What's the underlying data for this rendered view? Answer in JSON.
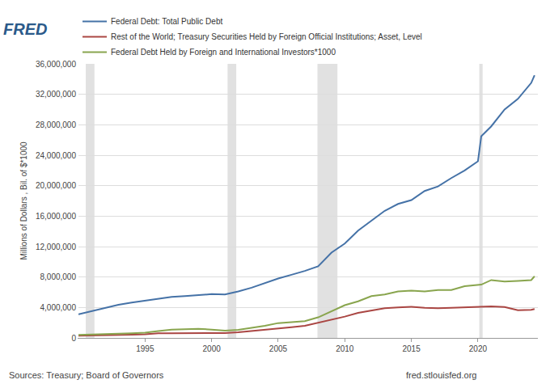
{
  "chart_data": {
    "type": "line",
    "logo": "FRED",
    "y_label": "Millions of Dollars , Bil. of $*1000",
    "sources": "Sources: Treasury; Board of Governors",
    "credit": "fred.stlouisfed.org",
    "legend": "top",
    "grid": true,
    "x": [
      1990,
      1991,
      1992,
      1993,
      1994,
      1995,
      1996,
      1997,
      1998,
      1999,
      2000,
      2001,
      2002,
      2003,
      2004,
      2005,
      2006,
      2007,
      2008,
      2009,
      2010,
      2011,
      2012,
      2013,
      2014,
      2015,
      2016,
      2017,
      2018,
      2019,
      2020,
      2020.25,
      2021,
      2022,
      2023,
      2024,
      2024.25
    ],
    "series": [
      {
        "name": "Federal Debt: Total Public Debt",
        "color": "#4572a7",
        "values": [
          3100000,
          3500000,
          3950000,
          4350000,
          4650000,
          4900000,
          5150000,
          5400000,
          5500000,
          5650000,
          5750000,
          5700000,
          6100000,
          6600000,
          7200000,
          7800000,
          8300000,
          8800000,
          9400000,
          11200000,
          12400000,
          14100000,
          15400000,
          16700000,
          17600000,
          18100000,
          19300000,
          19900000,
          21000000,
          22000000,
          23200000,
          26500000,
          27800000,
          30000000,
          31400000,
          33500000,
          34500000
        ]
      },
      {
        "name": "Rest of the World; Treasury Securities Held by Foreign Official Institutions; Asset, Level",
        "color": "#aa4643",
        "values": [
          280000,
          300000,
          330000,
          380000,
          420000,
          480000,
          600000,
          620000,
          620000,
          620000,
          640000,
          650000,
          750000,
          900000,
          1100000,
          1250000,
          1400000,
          1600000,
          2000000,
          2400000,
          2800000,
          3300000,
          3600000,
          3900000,
          4000000,
          4100000,
          3950000,
          3900000,
          3950000,
          4000000,
          4100000,
          4100000,
          4150000,
          4050000,
          3650000,
          3700000,
          3800000
        ]
      },
      {
        "name": "Federal Debt Held by Foreign and International Investors*1000",
        "color": "#89a54e",
        "values": [
          400000,
          430000,
          480000,
          550000,
          620000,
          700000,
          900000,
          1100000,
          1150000,
          1200000,
          1100000,
          950000,
          1050000,
          1300000,
          1600000,
          1950000,
          2050000,
          2200000,
          2700000,
          3500000,
          4300000,
          4800000,
          5500000,
          5700000,
          6100000,
          6200000,
          6100000,
          6300000,
          6300000,
          6800000,
          7000000,
          7000000,
          7600000,
          7400000,
          7500000,
          7600000,
          8100000
        ]
      }
    ],
    "recessions": [
      [
        1990.55,
        1991.2
      ],
      [
        2001.2,
        2001.85
      ],
      [
        2007.95,
        2009.45
      ],
      [
        2020.1,
        2020.35
      ]
    ],
    "xlim": [
      1990,
      2024.5
    ],
    "xticks": [
      1995,
      2000,
      2005,
      2010,
      2015,
      2020
    ],
    "ylim": [
      0,
      36000000
    ],
    "yticks": [
      0,
      {
        "value": 4000000,
        "label": "4,000,000"
      },
      {
        "value": 8000000,
        "label": "8,000,000"
      },
      {
        "value": 12000000,
        "label": "12,000,000"
      },
      {
        "value": 16000000,
        "label": "16,000,000"
      },
      {
        "value": 20000000,
        "label": "20,000,000"
      },
      {
        "value": 24000000,
        "label": "24,000,000"
      },
      {
        "value": 28000000,
        "label": "28,000,000"
      },
      {
        "value": 32000000,
        "label": "32,000,000"
      },
      {
        "value": 36000000,
        "label": "36,000,000"
      }
    ]
  }
}
